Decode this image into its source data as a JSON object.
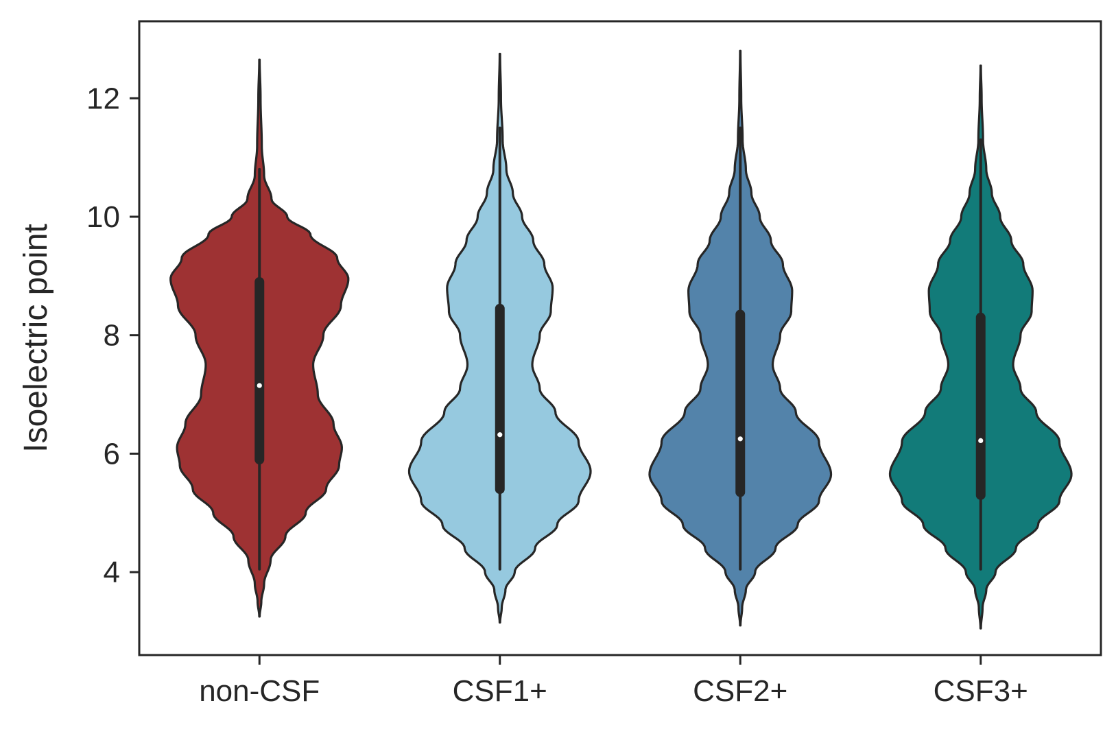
{
  "chart_data": {
    "type": "violin",
    "title": "",
    "xlabel": "",
    "ylabel": "Isoelectric point",
    "ylim": [
      2.6,
      13.3
    ],
    "yticks": [
      4,
      6,
      8,
      10,
      12
    ],
    "ytick_labels": [
      "4",
      "6",
      "8",
      "10",
      "12"
    ],
    "grid": false,
    "legend": "none",
    "categories": [
      "non-CSF",
      "CSF1+",
      "CSF2+",
      "CSF3+"
    ],
    "series": [
      {
        "category": "non-CSF",
        "color": "#9e3233",
        "min": 4.05,
        "max": 10.8,
        "kde_min": 3.25,
        "kde_max": 12.65,
        "q1": 5.9,
        "median": 7.15,
        "q3": 8.9,
        "density_profile": [
          [
            3.25,
            0.002
          ],
          [
            3.5,
            0.02
          ],
          [
            3.8,
            0.05
          ],
          [
            4.2,
            0.12
          ],
          [
            4.6,
            0.28
          ],
          [
            5.0,
            0.5
          ],
          [
            5.4,
            0.72
          ],
          [
            5.8,
            0.86
          ],
          [
            6.1,
            0.89
          ],
          [
            6.5,
            0.8
          ],
          [
            7.0,
            0.63
          ],
          [
            7.5,
            0.58
          ],
          [
            8.0,
            0.69
          ],
          [
            8.5,
            0.88
          ],
          [
            8.95,
            0.96
          ],
          [
            9.3,
            0.84
          ],
          [
            9.7,
            0.55
          ],
          [
            10.0,
            0.3
          ],
          [
            10.3,
            0.13
          ],
          [
            10.7,
            0.05
          ],
          [
            11.2,
            0.025
          ],
          [
            12.0,
            0.012
          ],
          [
            12.65,
            0.002
          ]
        ]
      },
      {
        "category": "CSF1+",
        "color": "#96c9df",
        "min": 4.05,
        "max": 11.5,
        "kde_min": 3.15,
        "kde_max": 12.75,
        "q1": 5.4,
        "median": 6.32,
        "q3": 8.45,
        "density_profile": [
          [
            3.15,
            0.002
          ],
          [
            3.4,
            0.02
          ],
          [
            3.7,
            0.06
          ],
          [
            4.0,
            0.16
          ],
          [
            4.4,
            0.38
          ],
          [
            4.8,
            0.62
          ],
          [
            5.2,
            0.85
          ],
          [
            5.7,
            0.98
          ],
          [
            6.2,
            0.85
          ],
          [
            6.7,
            0.6
          ],
          [
            7.1,
            0.43
          ],
          [
            7.5,
            0.35
          ],
          [
            8.0,
            0.43
          ],
          [
            8.4,
            0.55
          ],
          [
            8.8,
            0.57
          ],
          [
            9.2,
            0.48
          ],
          [
            9.6,
            0.36
          ],
          [
            10.0,
            0.24
          ],
          [
            10.4,
            0.14
          ],
          [
            10.8,
            0.07
          ],
          [
            11.3,
            0.03
          ],
          [
            12.0,
            0.012
          ],
          [
            12.75,
            0.002
          ]
        ]
      },
      {
        "category": "CSF2+",
        "color": "#5383aa",
        "min": 4.05,
        "max": 11.5,
        "kde_min": 3.1,
        "kde_max": 12.8,
        "q1": 5.35,
        "median": 6.25,
        "q3": 8.35,
        "density_profile": [
          [
            3.1,
            0.002
          ],
          [
            3.4,
            0.02
          ],
          [
            3.7,
            0.06
          ],
          [
            4.0,
            0.16
          ],
          [
            4.4,
            0.38
          ],
          [
            4.8,
            0.62
          ],
          [
            5.2,
            0.85
          ],
          [
            5.65,
            0.98
          ],
          [
            6.2,
            0.85
          ],
          [
            6.7,
            0.6
          ],
          [
            7.1,
            0.43
          ],
          [
            7.5,
            0.35
          ],
          [
            8.0,
            0.43
          ],
          [
            8.4,
            0.55
          ],
          [
            8.75,
            0.56
          ],
          [
            9.2,
            0.46
          ],
          [
            9.6,
            0.33
          ],
          [
            10.0,
            0.21
          ],
          [
            10.4,
            0.12
          ],
          [
            10.8,
            0.06
          ],
          [
            11.3,
            0.025
          ],
          [
            12.0,
            0.01
          ],
          [
            12.8,
            0.002
          ]
        ]
      },
      {
        "category": "CSF3+",
        "color": "#127b79",
        "min": 4.05,
        "max": 11.3,
        "kde_min": 3.05,
        "kde_max": 12.55,
        "q1": 5.3,
        "median": 6.22,
        "q3": 8.3,
        "density_profile": [
          [
            3.05,
            0.002
          ],
          [
            3.4,
            0.02
          ],
          [
            3.7,
            0.06
          ],
          [
            4.0,
            0.16
          ],
          [
            4.4,
            0.38
          ],
          [
            4.8,
            0.62
          ],
          [
            5.2,
            0.85
          ],
          [
            5.65,
            0.98
          ],
          [
            6.2,
            0.85
          ],
          [
            6.7,
            0.6
          ],
          [
            7.1,
            0.43
          ],
          [
            7.5,
            0.35
          ],
          [
            8.0,
            0.43
          ],
          [
            8.4,
            0.55
          ],
          [
            8.75,
            0.56
          ],
          [
            9.2,
            0.46
          ],
          [
            9.6,
            0.33
          ],
          [
            10.0,
            0.21
          ],
          [
            10.4,
            0.12
          ],
          [
            10.8,
            0.06
          ],
          [
            11.3,
            0.025
          ],
          [
            12.0,
            0.01
          ],
          [
            12.55,
            0.002
          ]
        ]
      }
    ],
    "colors": {
      "outline": "#262626",
      "median_dot": "#ffffff",
      "background": "#ffffff"
    }
  }
}
